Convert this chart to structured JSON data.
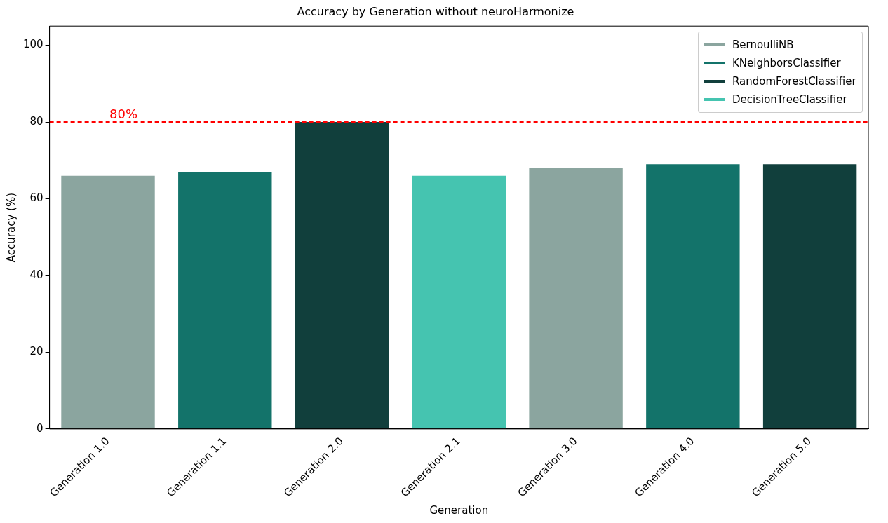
{
  "chart_data": {
    "type": "bar",
    "title": "Accuracy by Generation without neuroHarmonize",
    "xlabel": "Generation",
    "ylabel": "Accuracy (%)",
    "categories": [
      "Generation 1.0",
      "Generation 1.1",
      "Generation 2.0",
      "Generation 2.1",
      "Generation 3.0",
      "Generation 4.0",
      "Generation 5.0"
    ],
    "series": [
      {
        "name": "BernoulliNB",
        "color": "#8ba59f",
        "values": [
          66,
          null,
          null,
          null,
          68,
          null,
          null
        ]
      },
      {
        "name": "KNeighborsClassifier",
        "color": "#13736a",
        "values": [
          null,
          67,
          null,
          null,
          null,
          69,
          null
        ]
      },
      {
        "name": "RandomForestClassifier",
        "color": "#113f3c",
        "values": [
          null,
          null,
          80,
          null,
          null,
          null,
          69
        ]
      },
      {
        "name": "DecisionTreeClassifier",
        "color": "#45c4b0",
        "values": [
          null,
          null,
          null,
          66,
          null,
          null,
          null
        ]
      }
    ],
    "ylim": [
      0,
      105
    ],
    "yticks": [
      0,
      20,
      40,
      60,
      80,
      100
    ],
    "grid": false,
    "legend": "top right",
    "ref_lines": [
      {
        "axis": "y",
        "value": 80,
        "label": "80%",
        "color": "#ff0000",
        "line_style": "dashed"
      }
    ]
  }
}
